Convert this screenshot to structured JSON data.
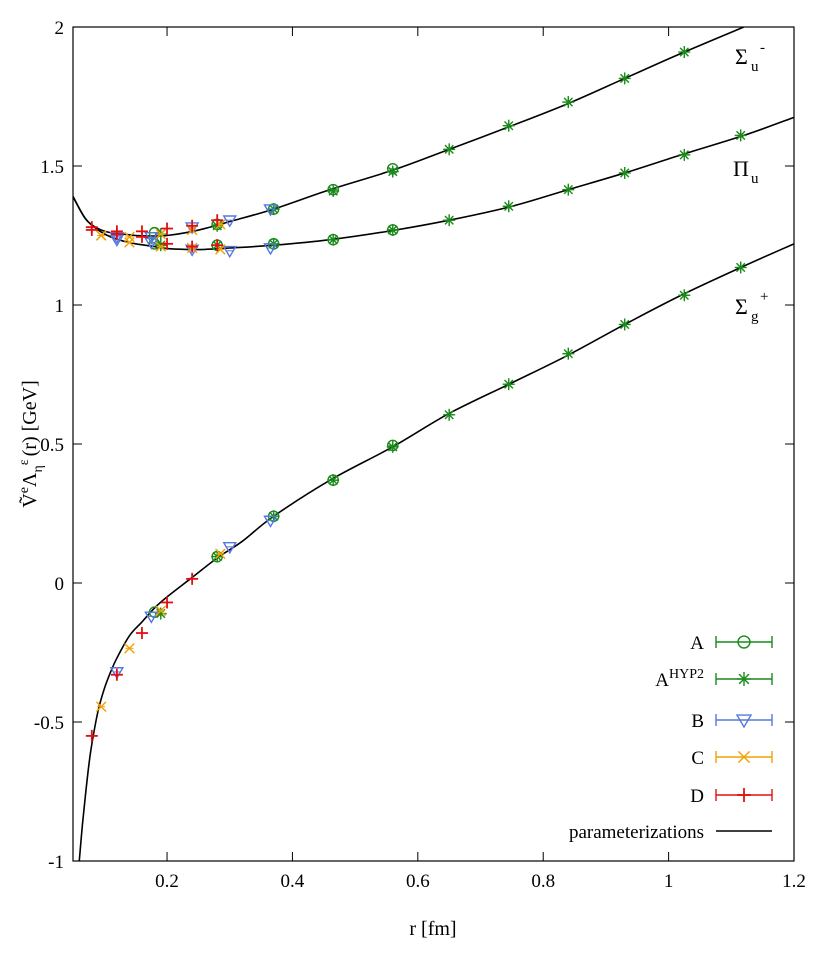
{
  "chart_data": {
    "type": "scatter",
    "xlabel": "r  [fm]",
    "ylabel_parts": {
      "base": "Ṽ",
      "sup_e": "e",
      "lambda": "Λ",
      "sub_eta": "η",
      "sup_eps": "ε",
      "rest": "(r)  [GeV]"
    },
    "xlim": [
      0.05,
      1.2
    ],
    "ylim": [
      -1,
      2
    ],
    "xticks": [
      0.2,
      0.4,
      0.6,
      0.8,
      1,
      1.2
    ],
    "yticks": [
      -1,
      -0.5,
      0,
      0.5,
      1,
      1.5,
      2
    ],
    "xtick_labels": [
      "0.2",
      "0.4",
      "0.6",
      "0.8",
      "1",
      "1.2"
    ],
    "ytick_labels": [
      "-1",
      "-0.5",
      "0",
      "0.5",
      "1",
      "1.5",
      "2"
    ],
    "grid": false,
    "legend_position": "bottom-right",
    "curve_labels": [
      {
        "id": "sigma_u_minus",
        "base": "Σ",
        "sub": "u",
        "sup": "-"
      },
      {
        "id": "pi_u",
        "base": "Π",
        "sub": "u",
        "sup": ""
      },
      {
        "id": "sigma_g_plus",
        "base": "Σ",
        "sub": "g",
        "sup": "+"
      }
    ],
    "legend": [
      {
        "label": "A",
        "sup": "",
        "marker": "circle",
        "color": "#1a8a1a"
      },
      {
        "label": "A",
        "sup": "HYP2",
        "marker": "asterisk",
        "color": "#1a8a1a"
      },
      {
        "label": "B",
        "sup": "",
        "marker": "triangle-down",
        "color": "#5577e0"
      },
      {
        "label": "C",
        "sup": "",
        "marker": "cross",
        "color": "#f2a000"
      },
      {
        "label": "D",
        "sup": "",
        "marker": "plus",
        "color": "#e01010"
      },
      {
        "label": "parameterizations",
        "sup": "",
        "marker": "line",
        "color": "#000000"
      }
    ],
    "curves": [
      {
        "id": "sigma_g_plus",
        "x": [
          0.06,
          0.065,
          0.07,
          0.075,
          0.08,
          0.09,
          0.1,
          0.11,
          0.12,
          0.14,
          0.16,
          0.18,
          0.2,
          0.24,
          0.28,
          0.32,
          0.37,
          0.46,
          0.56,
          0.65,
          0.75,
          0.84,
          0.93,
          1.02,
          1.12,
          1.2
        ],
        "y": [
          -1.0,
          -0.87,
          -0.76,
          -0.66,
          -0.58,
          -0.46,
          -0.38,
          -0.32,
          -0.27,
          -0.19,
          -0.14,
          -0.09,
          -0.05,
          0.02,
          0.09,
          0.15,
          0.24,
          0.37,
          0.49,
          0.61,
          0.72,
          0.82,
          0.93,
          1.035,
          1.14,
          1.22
        ]
      },
      {
        "id": "pi_u",
        "x": [
          0.05,
          0.07,
          0.09,
          0.11,
          0.13,
          0.15,
          0.18,
          0.2,
          0.23,
          0.26,
          0.3,
          0.37,
          0.46,
          0.56,
          0.65,
          0.75,
          0.84,
          0.93,
          1.02,
          1.12,
          1.2
        ],
        "y": [
          1.39,
          1.31,
          1.27,
          1.245,
          1.23,
          1.22,
          1.21,
          1.203,
          1.2,
          1.2,
          1.205,
          1.215,
          1.235,
          1.268,
          1.305,
          1.355,
          1.415,
          1.475,
          1.54,
          1.61,
          1.675
        ]
      },
      {
        "id": "sigma_u_minus",
        "x": [
          0.05,
          0.07,
          0.09,
          0.11,
          0.13,
          0.15,
          0.18,
          0.2,
          0.23,
          0.26,
          0.3,
          0.37,
          0.46,
          0.56,
          0.65,
          0.75,
          0.84,
          0.93,
          1.02,
          1.12
        ],
        "y": [
          1.39,
          1.31,
          1.275,
          1.26,
          1.255,
          1.25,
          1.248,
          1.25,
          1.26,
          1.275,
          1.3,
          1.345,
          1.415,
          1.485,
          1.56,
          1.645,
          1.725,
          1.815,
          1.905,
          2.0
        ]
      }
    ],
    "series": [
      {
        "name": "A",
        "marker": "circle",
        "color": "#1a8a1a",
        "x": [
          0.18,
          0.28,
          0.37,
          0.465,
          0.56,
          0.18,
          0.28,
          0.37,
          0.465,
          0.56,
          0.18,
          0.28,
          0.37,
          0.465,
          0.56
        ],
        "y": [
          -0.105,
          0.095,
          0.24,
          0.37,
          0.495,
          1.22,
          1.215,
          1.22,
          1.235,
          1.27,
          1.26,
          1.29,
          1.345,
          1.415,
          1.49
        ]
      },
      {
        "name": "AHYP2",
        "marker": "asterisk",
        "color": "#1a8a1a",
        "x": [
          0.19,
          0.28,
          0.37,
          0.465,
          0.56,
          0.65,
          0.745,
          0.84,
          0.93,
          1.025,
          1.115,
          0.19,
          0.28,
          0.37,
          0.465,
          0.56,
          0.65,
          0.745,
          0.84,
          0.93,
          1.025,
          1.115,
          0.19,
          0.28,
          0.37,
          0.465,
          0.56,
          0.65,
          0.745,
          0.84,
          0.93,
          1.025
        ],
        "y": [
          -0.11,
          0.095,
          0.24,
          0.37,
          0.49,
          0.605,
          0.715,
          0.825,
          0.93,
          1.035,
          1.135,
          1.215,
          1.215,
          1.22,
          1.235,
          1.27,
          1.305,
          1.355,
          1.415,
          1.475,
          1.54,
          1.61,
          1.255,
          1.285,
          1.345,
          1.41,
          1.48,
          1.56,
          1.645,
          1.73,
          1.815,
          1.91
        ]
      },
      {
        "name": "B",
        "marker": "triangle-down",
        "color": "#5577e0",
        "x": [
          0.12,
          0.175,
          0.3,
          0.365,
          0.12,
          0.175,
          0.24,
          0.3,
          0.365,
          0.12,
          0.175,
          0.24,
          0.3,
          0.365
        ],
        "y": [
          -0.32,
          -0.12,
          0.13,
          0.225,
          1.235,
          1.225,
          1.2,
          1.195,
          1.205,
          1.245,
          1.245,
          1.28,
          1.305,
          1.345
        ]
      },
      {
        "name": "C",
        "marker": "cross",
        "color": "#f2a000",
        "x": [
          0.095,
          0.14,
          0.19,
          0.285,
          0.095,
          0.14,
          0.19,
          0.24,
          0.285,
          0.095,
          0.14,
          0.19,
          0.24,
          0.285
        ],
        "y": [
          -0.445,
          -0.235,
          -0.1,
          0.105,
          1.25,
          1.225,
          1.21,
          1.205,
          1.2,
          1.25,
          1.245,
          1.255,
          1.27,
          1.29
        ]
      },
      {
        "name": "D",
        "marker": "plus",
        "color": "#e01010",
        "x": [
          0.08,
          0.12,
          0.16,
          0.2,
          0.24,
          0.08,
          0.12,
          0.16,
          0.2,
          0.24,
          0.28,
          0.08,
          0.12,
          0.16,
          0.2,
          0.24,
          0.28
        ],
        "y": [
          -0.55,
          -0.33,
          -0.18,
          -0.07,
          0.015,
          1.27,
          1.255,
          1.245,
          1.22,
          1.21,
          1.215,
          1.28,
          1.265,
          1.265,
          1.275,
          1.285,
          1.305
        ]
      }
    ]
  }
}
